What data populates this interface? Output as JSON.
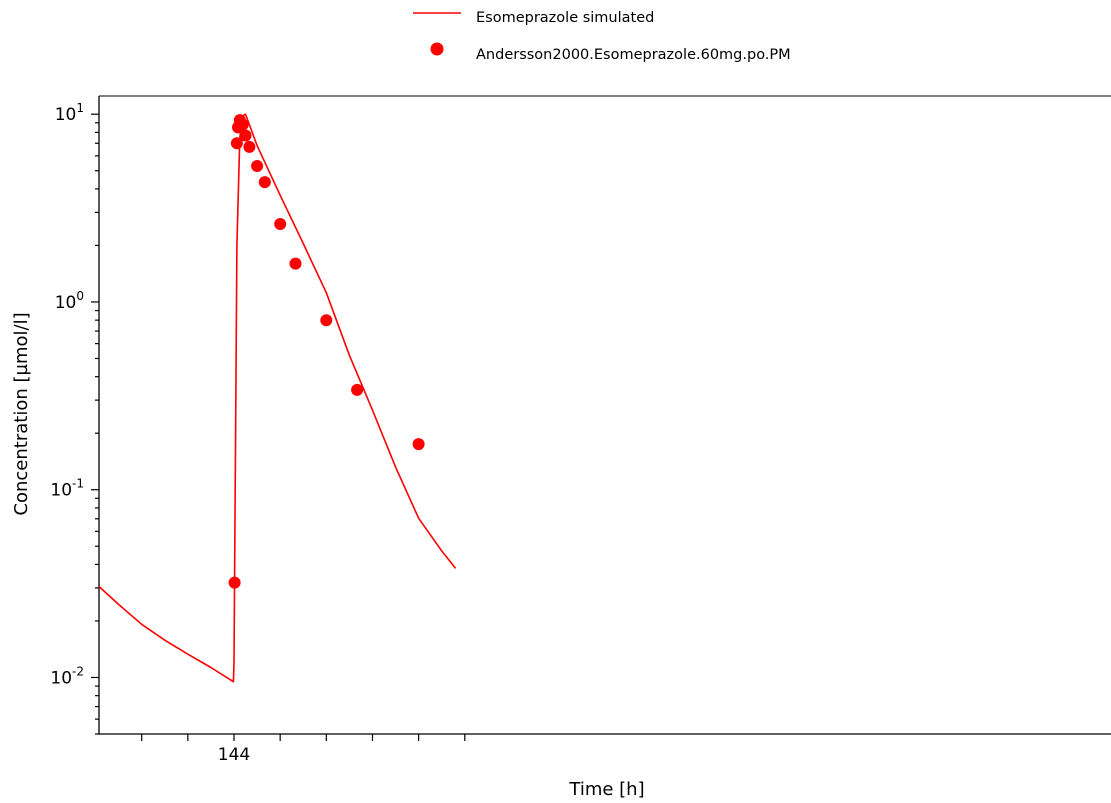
{
  "chart_data": {
    "type": "line",
    "title": "",
    "xlabel": "Time [h]",
    "ylabel": "Concentration [µmol/l]",
    "yscale": "log",
    "xlim": [
      132.3,
      220.0
    ],
    "ylim": [
      0.005,
      12.5
    ],
    "x_ticks": [
      {
        "value": 136,
        "label": ""
      },
      {
        "value": 140,
        "label": ""
      },
      {
        "value": 144,
        "label": "144"
      },
      {
        "value": 148,
        "label": ""
      },
      {
        "value": 152,
        "label": ""
      },
      {
        "value": 156,
        "label": ""
      },
      {
        "value": 160,
        "label": ""
      },
      {
        "value": 164,
        "label": ""
      }
    ],
    "y_major_ticks": [
      {
        "value": 0.01,
        "base": "10",
        "exp": "-2"
      },
      {
        "value": 0.1,
        "base": "10",
        "exp": "-1"
      },
      {
        "value": 1,
        "base": "10",
        "exp": "0"
      },
      {
        "value": 10,
        "base": "10",
        "exp": "1"
      }
    ],
    "legend": {
      "position": "top-center"
    },
    "series": [
      {
        "name": "Esomeprazole simulated",
        "type": "line",
        "color": "#ff0000",
        "x": [
          132.3,
          134,
          136,
          138,
          140,
          142,
          143.95,
          144.0,
          144.25,
          144.5,
          144.75,
          145.0,
          146,
          148,
          150,
          152,
          154,
          156,
          158,
          160,
          162,
          163.2
        ],
        "y": [
          0.0305,
          0.0245,
          0.0192,
          0.0158,
          0.0133,
          0.0113,
          0.0095,
          0.012,
          2.0,
          7.5,
          9.8,
          10.0,
          6.8,
          3.7,
          2.05,
          1.12,
          0.52,
          0.265,
          0.132,
          0.0705,
          0.0472,
          0.0381
        ]
      },
      {
        "name": "Andersson2000.Esomeprazole.60mg.po.PM",
        "type": "scatter",
        "color": "#ff0000",
        "x": [
          144.05,
          144.25,
          144.35,
          144.5,
          144.65,
          144.75,
          145.0,
          145.33,
          146.0,
          146.67,
          148.0,
          149.33,
          152.0,
          154.67,
          160.0
        ],
        "y": [
          0.032,
          7.0,
          8.5,
          9.3,
          8.8,
          8.8,
          7.7,
          6.7,
          5.3,
          4.35,
          2.6,
          1.6,
          0.8,
          0.34,
          0.175
        ]
      }
    ]
  }
}
